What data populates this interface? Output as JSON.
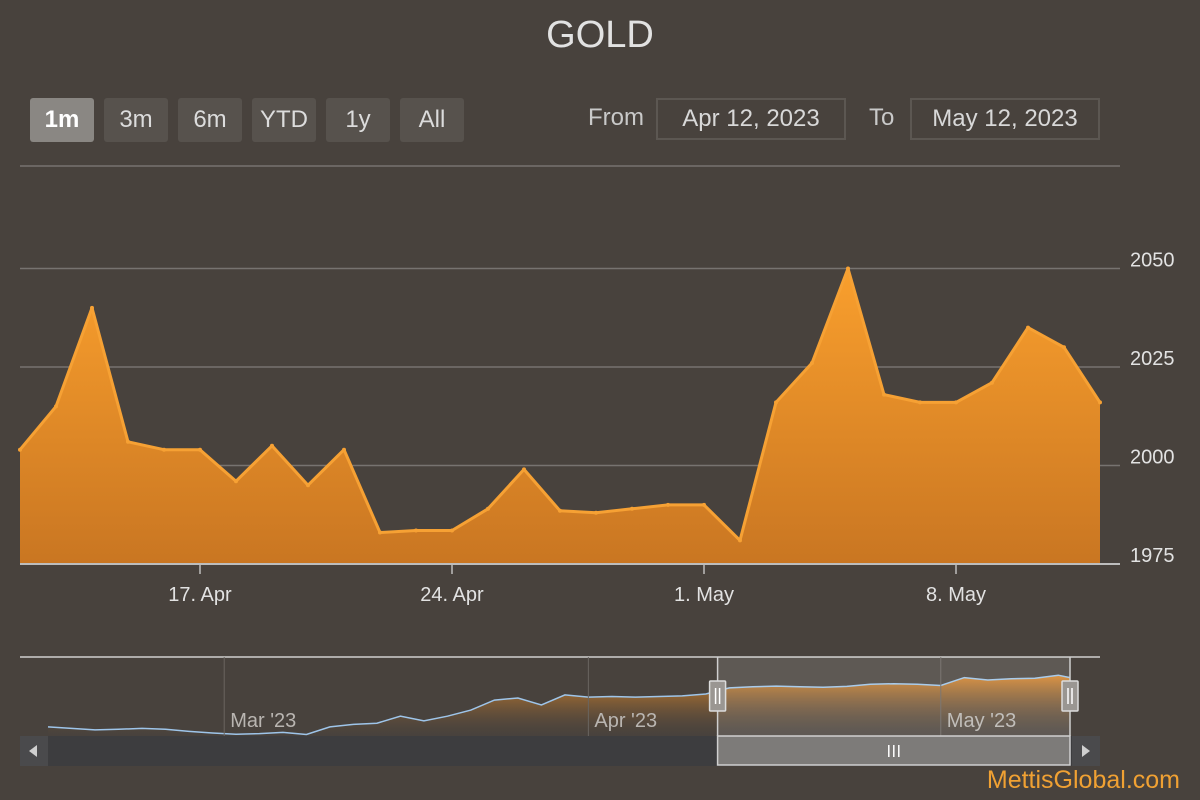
{
  "title": "GOLD",
  "range_selector": {
    "buttons": [
      "1m",
      "3m",
      "6m",
      "YTD",
      "1y",
      "All"
    ],
    "active": "1m",
    "from_label": "From",
    "to_label": "To",
    "from_value": "Apr 12, 2023",
    "to_value": "May 12, 2023"
  },
  "brand": "MettisGlobal.com",
  "colors": {
    "background": "#48423d",
    "series_line": "#f6a134",
    "series_fill_top": "#f99f2d",
    "series_fill_bottom": "#c97622",
    "navigator_line": "#9ec5ea",
    "grid": "#777370",
    "text": "#e2e2e2"
  },
  "chart_data": {
    "type": "area",
    "title": "GOLD",
    "grid": true,
    "x": [
      "2023-04-12",
      "2023-04-13",
      "2023-04-14",
      "2023-04-15",
      "2023-04-16",
      "2023-04-17",
      "2023-04-18",
      "2023-04-19",
      "2023-04-20",
      "2023-04-21",
      "2023-04-22",
      "2023-04-23",
      "2023-04-24",
      "2023-04-25",
      "2023-04-26",
      "2023-04-27",
      "2023-04-28",
      "2023-04-29",
      "2023-04-30",
      "2023-05-01",
      "2023-05-02",
      "2023-05-03",
      "2023-05-04",
      "2023-05-05",
      "2023-05-06",
      "2023-05-07",
      "2023-05-08",
      "2023-05-09",
      "2023-05-10",
      "2023-05-11",
      "2023-05-12"
    ],
    "y": [
      2004,
      2015,
      2040,
      2006,
      2004,
      2004,
      1996,
      2005,
      1995,
      2004,
      1983,
      1983.5,
      1983.5,
      1989,
      1999,
      1988.5,
      1988,
      1989,
      1990,
      1990,
      1981,
      2016,
      2026,
      2050,
      2018,
      2016,
      2016,
      2021,
      2035,
      2030,
      2016
    ],
    "ylim": [
      1975,
      2076
    ],
    "y_ticks": [
      "1975",
      "2000",
      "2025",
      "2050"
    ],
    "y_tick_values": [
      1975,
      2000,
      2025,
      2050
    ],
    "x_ticks": [
      "17. Apr",
      "24. Apr",
      "1. May",
      "8. May"
    ],
    "x_tick_dates": [
      "2023-04-17",
      "2023-04-24",
      "2023-05-01",
      "2023-05-08"
    ],
    "series": [
      {
        "values_ref": "y"
      }
    ],
    "navigator": {
      "x_ticks": [
        "Mar '23",
        "Apr '23",
        "May '23"
      ],
      "x_tick_dates": [
        "2023-03-01",
        "2023-04-01",
        "2023-05-01"
      ],
      "x_start": "2023-02-14",
      "x_end": "2023-05-12",
      "selected_from": "2023-04-12",
      "selected_to": "2023-05-12",
      "ylim": [
        1820,
        2060
      ],
      "x": [
        "2023-02-14",
        "2023-02-16",
        "2023-02-18",
        "2023-02-20",
        "2023-02-22",
        "2023-02-24",
        "2023-02-26",
        "2023-02-28",
        "2023-03-02",
        "2023-03-04",
        "2023-03-06",
        "2023-03-08",
        "2023-03-10",
        "2023-03-12",
        "2023-03-14",
        "2023-03-16",
        "2023-03-18",
        "2023-03-20",
        "2023-03-22",
        "2023-03-24",
        "2023-03-26",
        "2023-03-28",
        "2023-03-30",
        "2023-04-01",
        "2023-04-03",
        "2023-04-05",
        "2023-04-07",
        "2023-04-09",
        "2023-04-11",
        "2023-04-13",
        "2023-04-15",
        "2023-04-17",
        "2023-04-19",
        "2023-04-21",
        "2023-04-23",
        "2023-04-25",
        "2023-04-27",
        "2023-04-29",
        "2023-05-01",
        "2023-05-03",
        "2023-05-05",
        "2023-05-07",
        "2023-05-09",
        "2023-05-11",
        "2023-05-12"
      ],
      "y": [
        1850,
        1845,
        1840,
        1842,
        1845,
        1842,
        1835,
        1830,
        1826,
        1828,
        1832,
        1825,
        1850,
        1858,
        1862,
        1885,
        1870,
        1885,
        1905,
        1938,
        1945,
        1922,
        1955,
        1948,
        1950,
        1948,
        1950,
        1952,
        1958,
        1978,
        1982,
        1984,
        1982,
        1980,
        1983,
        1990,
        1992,
        1990,
        1986,
        2012,
        2004,
        2008,
        2010,
        2020,
        2012
      ]
    }
  }
}
